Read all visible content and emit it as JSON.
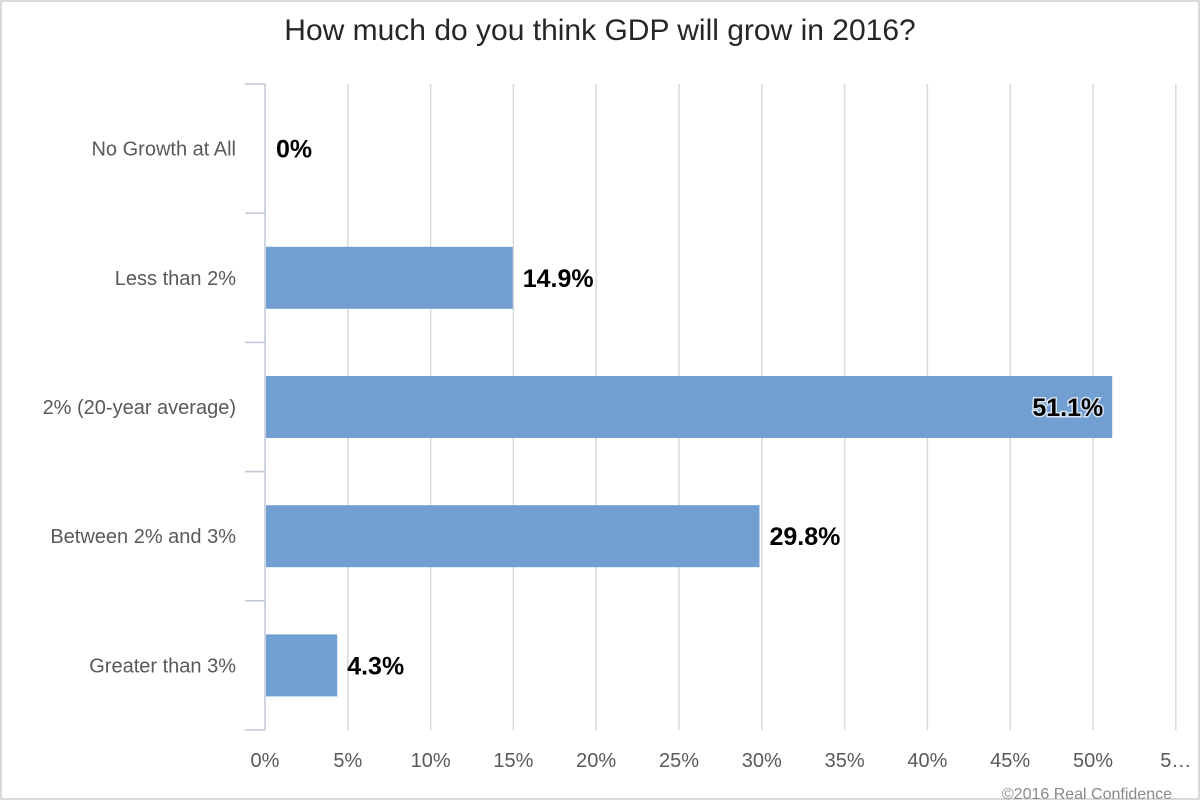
{
  "chart_data": {
    "type": "bar",
    "orientation": "horizontal",
    "title": "How much do you think GDP will grow in 2016?",
    "categories": [
      "No Growth at All",
      "Less than 2%",
      "2% (20-year average)",
      "Between 2% and 3%",
      "Greater than 3%"
    ],
    "values": [
      0,
      14.9,
      51.1,
      29.8,
      4.3
    ],
    "value_labels": [
      "0%",
      "14.9%",
      "51.1%",
      "29.8%",
      "4.3%"
    ],
    "x_ticks": [
      "0%",
      "5%",
      "10%",
      "15%",
      "20%",
      "25%",
      "30%",
      "35%",
      "40%",
      "45%",
      "50%",
      "5…"
    ],
    "xlim": [
      0,
      55
    ],
    "xlabel": "",
    "ylabel": "",
    "grid": true,
    "legend": "none",
    "bar_color": "#729fd2",
    "grid_color": "#d9d9d9"
  },
  "footer": {
    "watermark": "©2016 Real Confidence"
  }
}
